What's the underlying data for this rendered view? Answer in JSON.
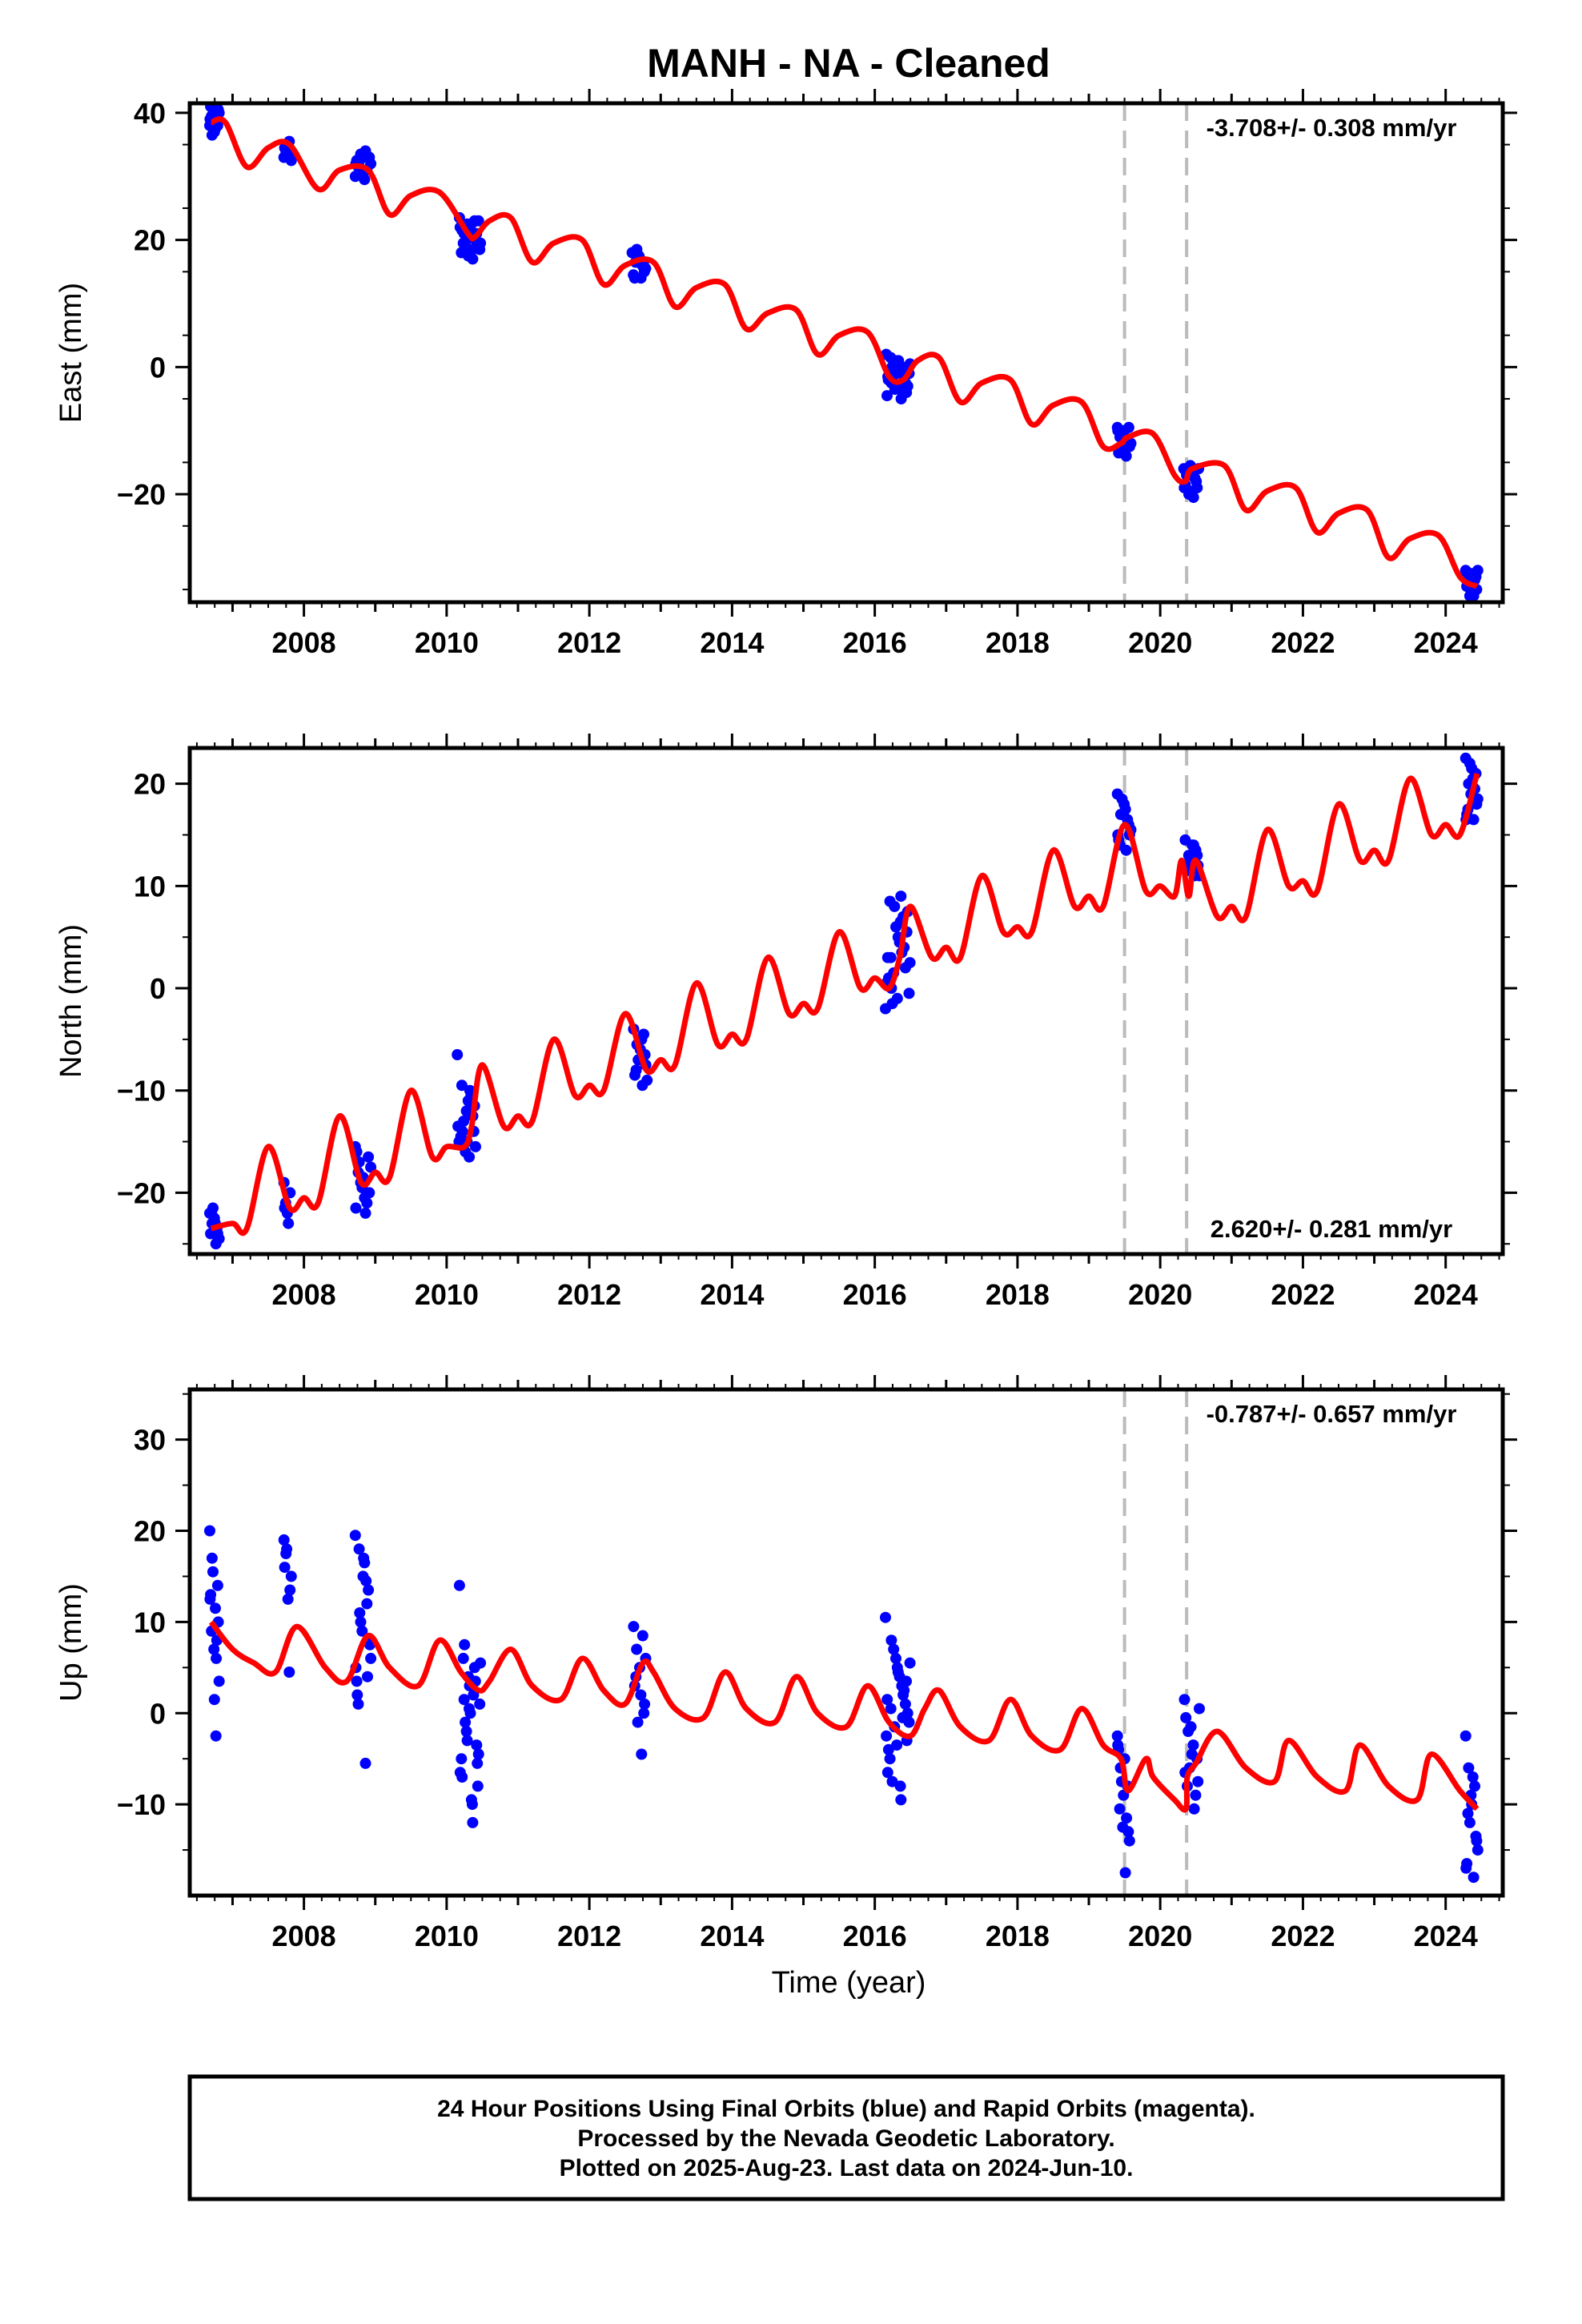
{
  "title": "MANH  - NA - Cleaned",
  "xlabel": "Time (year)",
  "footer": [
    "24 Hour Positions Using Final Orbits (blue) and Rapid Orbits (magenta).",
    "Processed by the Nevada Geodetic Laboratory.",
    "Plotted on 2025-Aug-23. Last data on 2024-Jun-10."
  ],
  "colors": {
    "data": "#0000ff",
    "model": "#ff0000",
    "event": "#bbbbbb",
    "frame": "#000000"
  },
  "events": [
    2019.5,
    2020.37
  ],
  "xlim": [
    2006.4,
    2024.8
  ],
  "x_ticks": [
    "2008",
    "2010",
    "2012",
    "2014",
    "2016",
    "2018",
    "2020",
    "2022",
    "2024"
  ],
  "chart_data": [
    {
      "type": "scatter",
      "ylabel": "East (mm)",
      "rate": "-3.708+/- 0.308 mm/yr",
      "rate_pos": "top-right",
      "ylim": [
        -37,
        41.5
      ],
      "y_ticks": [
        "40",
        "20",
        "0",
        "−20"
      ],
      "model": {
        "name": "model",
        "x": [
          2006.7,
          2006.9,
          2007.2,
          2007.5,
          2007.8,
          2008.2,
          2008.5,
          2008.9,
          2009.2,
          2009.5,
          2009.9,
          2010.3,
          2010.4,
          2010.6,
          2010.9,
          2011.2,
          2011.5,
          2011.9,
          2012.2,
          2012.5,
          2012.9,
          2013.2,
          2013.5,
          2013.9,
          2014.2,
          2014.5,
          2014.9,
          2015.2,
          2015.5,
          2015.9,
          2016.2,
          2016.4,
          2016.6,
          2016.9,
          2017.2,
          2017.5,
          2017.9,
          2018.2,
          2018.5,
          2018.9,
          2019.2,
          2019.45,
          2019.55,
          2019.9,
          2020.2,
          2020.35,
          2020.45,
          2020.9,
          2021.2,
          2021.5,
          2021.9,
          2022.2,
          2022.5,
          2022.9,
          2023.2,
          2023.5,
          2023.9,
          2024.2,
          2024.44
        ],
        "y": [
          38.5,
          38.5,
          31.5,
          34.5,
          35.0,
          28.0,
          31.0,
          31.0,
          24.0,
          27.0,
          27.5,
          21.0,
          20.5,
          23.0,
          23.5,
          16.5,
          19.5,
          20.0,
          13.0,
          16.0,
          16.5,
          9.5,
          12.5,
          13.0,
          6.0,
          8.5,
          9.0,
          2.0,
          5.0,
          5.5,
          -1.5,
          -2.0,
          1.0,
          1.5,
          -5.5,
          -2.5,
          -2.0,
          -9.0,
          -6.0,
          -5.5,
          -12.5,
          -12.0,
          -11.0,
          -10.5,
          -17.0,
          -18.0,
          -16.0,
          -15.5,
          -22.5,
          -19.5,
          -19.0,
          -26.0,
          -23.0,
          -22.5,
          -30.0,
          -27.0,
          -26.5,
          -33.0,
          -34.5
        ]
      },
      "observations": [
        {
          "t0": 2006.68,
          "t1": 2006.82,
          "y": [
            38.0,
            42.0,
            36.5,
            40.5,
            37.0,
            41.0,
            39.0,
            38.5,
            40.0,
            37.5,
            39.5,
            38.0,
            41.5,
            39.0
          ]
        },
        {
          "t0": 2007.72,
          "t1": 2007.84,
          "y": [
            33.0,
            35.5,
            34.0,
            32.5,
            35.0,
            34.5,
            33.5,
            34.0
          ]
        },
        {
          "t0": 2008.72,
          "t1": 2008.95,
          "y": [
            30.0,
            34.0,
            31.5,
            33.0,
            30.5,
            32.5,
            31.0,
            33.5,
            32.0,
            29.5,
            31.5,
            33.0,
            30.5,
            32.0,
            31.0,
            32.5
          ]
        },
        {
          "t0": 2010.18,
          "t1": 2010.48,
          "y": [
            23.5,
            17.0,
            22.0,
            19.0,
            21.5,
            18.0,
            23.0,
            20.0,
            18.5,
            22.5,
            19.5,
            21.0,
            17.5,
            22.0,
            20.5,
            19.0,
            23.0,
            18.0,
            21.5,
            20.0,
            22.5,
            19.5,
            18.5,
            21.0
          ]
        },
        {
          "t0": 2012.6,
          "t1": 2012.8,
          "y": [
            18.0,
            14.0,
            16.5,
            15.0,
            17.5,
            14.5,
            16.0,
            18.5,
            15.5,
            17.0,
            14.0,
            16.5
          ]
        },
        {
          "t0": 2016.16,
          "t1": 2016.5,
          "y": [
            2.0,
            -5.0,
            0.0,
            -3.0,
            1.0,
            -2.0,
            -4.0,
            0.5,
            -1.0,
            -3.5,
            1.5,
            -2.5,
            -0.5,
            -4.5,
            0.0,
            -1.5,
            -3.0,
            1.0,
            -2.0,
            -0.5,
            -3.5,
            0.5,
            -1.0,
            -2.5,
            -4.0,
            0.0,
            -1.5,
            -3.0
          ]
        },
        {
          "t0": 2019.4,
          "t1": 2019.6,
          "y": [
            -9.5,
            -14.0,
            -11.0,
            -12.5,
            -10.0,
            -13.5,
            -11.5,
            -10.5,
            -12.0,
            -13.0,
            -11.0,
            -9.5,
            -12.5,
            -10.0
          ]
        },
        {
          "t0": 2020.33,
          "t1": 2020.55,
          "y": [
            -16.0,
            -20.5,
            -17.0,
            -19.0,
            -16.5,
            -18.5,
            -17.5,
            -20.0,
            -16.0,
            -19.5,
            -17.0,
            -18.0,
            -15.5,
            -19.0
          ]
        },
        {
          "t0": 2024.28,
          "t1": 2024.46,
          "y": [
            -32.0,
            -36.0,
            -33.0,
            -35.0,
            -32.5,
            -34.5,
            -33.5,
            -36.0,
            -32.0,
            -35.5,
            -34.0,
            -33.0,
            -35.0,
            -32.5
          ]
        }
      ]
    },
    {
      "type": "scatter",
      "ylabel": "North (mm)",
      "rate": "2.620+/- 0.281 mm/yr",
      "rate_pos": "bottom-right",
      "ylim": [
        -26,
        23.5
      ],
      "y_ticks": [
        "20",
        "10",
        "0",
        "−10",
        "−20"
      ],
      "model": {
        "name": "model",
        "x": [
          2006.7,
          2007.0,
          2007.2,
          2007.5,
          2007.8,
          2008.0,
          2008.2,
          2008.5,
          2008.8,
          2009.0,
          2009.2,
          2009.5,
          2009.8,
          2010.0,
          2010.25,
          2010.35,
          2010.5,
          2010.8,
          2011.0,
          2011.2,
          2011.5,
          2011.8,
          2012.0,
          2012.2,
          2012.5,
          2012.8,
          2013.0,
          2013.2,
          2013.5,
          2013.8,
          2014.0,
          2014.2,
          2014.5,
          2014.8,
          2015.0,
          2015.2,
          2015.5,
          2015.8,
          2016.0,
          2016.2,
          2016.35,
          2016.5,
          2016.8,
          2017.0,
          2017.2,
          2017.5,
          2017.8,
          2018.0,
          2018.2,
          2018.5,
          2018.8,
          2019.0,
          2019.2,
          2019.5,
          2019.8,
          2020.0,
          2020.2,
          2020.3,
          2020.4,
          2020.5,
          2020.8,
          2021.0,
          2021.2,
          2021.5,
          2021.8,
          2022.0,
          2022.2,
          2022.5,
          2022.8,
          2023.0,
          2023.2,
          2023.5,
          2023.8,
          2024.0,
          2024.2,
          2024.44
        ],
        "y": [
          -23.5,
          -23.0,
          -23.5,
          -15.5,
          -21.5,
          -20.5,
          -21.0,
          -12.5,
          -19.0,
          -18.0,
          -18.5,
          -10.0,
          -16.5,
          -15.5,
          -15.5,
          -13.5,
          -7.5,
          -13.5,
          -12.5,
          -13.0,
          -5.0,
          -10.5,
          -9.5,
          -10.0,
          -2.5,
          -8.0,
          -7.0,
          -7.5,
          0.5,
          -5.5,
          -4.5,
          -5.0,
          3.0,
          -2.5,
          -1.5,
          -2.0,
          5.5,
          0.0,
          1.0,
          0.0,
          3.0,
          8.0,
          3.0,
          4.0,
          3.0,
          11.0,
          5.5,
          6.0,
          5.5,
          13.5,
          8.0,
          9.0,
          8.0,
          16.0,
          9.5,
          10.0,
          9.0,
          12.5,
          9.0,
          12.5,
          7.0,
          8.0,
          7.0,
          15.5,
          10.0,
          10.5,
          9.5,
          18.0,
          12.5,
          13.5,
          12.5,
          20.5,
          15.0,
          16.0,
          15.0,
          21.0
        ]
      },
      "observations": [
        {
          "t0": 2006.68,
          "t1": 2006.82,
          "y": [
            -22.0,
            -25.0,
            -23.0,
            -24.5,
            -22.5,
            -24.0,
            -23.5,
            -21.5,
            -24.5,
            -23.0,
            -22.0,
            -24.0
          ]
        },
        {
          "t0": 2007.72,
          "t1": 2007.82,
          "y": [
            -19.0,
            -23.0,
            -21.0,
            -20.0,
            -22.0,
            -21.5
          ]
        },
        {
          "t0": 2008.72,
          "t1": 2008.95,
          "y": [
            -15.5,
            -22.0,
            -17.0,
            -20.0,
            -18.5,
            -16.0,
            -21.0,
            -19.0,
            -17.5,
            -20.5,
            -18.0,
            -16.5,
            -19.5,
            -21.5
          ]
        },
        {
          "t0": 2010.15,
          "t1": 2010.42,
          "y": [
            -6.5,
            -16.5,
            -9.5,
            -14.0,
            -12.0,
            -15.0,
            -10.5,
            -13.0,
            -15.5,
            -11.0,
            -14.5,
            -12.5,
            -16.0,
            -13.5,
            -10.0,
            -14.0,
            -11.5,
            -15.0
          ]
        },
        {
          "t0": 2012.62,
          "t1": 2012.82,
          "y": [
            -4.0,
            -9.5,
            -5.5,
            -7.5,
            -6.0,
            -8.5,
            -4.5,
            -7.0,
            -9.0,
            -5.0,
            -8.0,
            -6.5
          ]
        },
        {
          "t0": 2016.15,
          "t1": 2016.5,
          "y": [
            -2.0,
            9.0,
            0.0,
            5.5,
            -1.0,
            3.0,
            7.0,
            1.5,
            -0.5,
            4.5,
            8.5,
            2.0,
            6.0,
            0.5,
            3.5,
            -1.5,
            7.5,
            5.0,
            1.0,
            4.0,
            8.0,
            2.5,
            6.5,
            3.0
          ]
        },
        {
          "t0": 2019.4,
          "t1": 2019.6,
          "y": [
            19.0,
            13.5,
            17.0,
            15.0,
            18.0,
            14.5,
            16.5,
            18.5,
            15.5,
            17.5,
            14.0,
            16.0,
            17.0,
            15.0
          ]
        },
        {
          "t0": 2020.35,
          "t1": 2020.56,
          "y": [
            14.5,
            11.0,
            13.0,
            12.0,
            14.0,
            11.5,
            13.5,
            12.5,
            11.0,
            14.0,
            12.0,
            13.0
          ]
        },
        {
          "t0": 2024.28,
          "t1": 2024.46,
          "y": [
            22.5,
            16.5,
            20.0,
            18.0,
            21.5,
            17.0,
            19.5,
            22.0,
            18.5,
            20.5,
            17.5,
            21.0,
            19.0,
            16.5
          ]
        }
      ]
    },
    {
      "type": "scatter",
      "ylabel": "Up (mm)",
      "rate": "-0.787+/- 0.657 mm/yr",
      "rate_pos": "top-right",
      "ylim": [
        -20,
        35.5
      ],
      "y_ticks": [
        "30",
        "20",
        "10",
        "0",
        "−10"
      ],
      "model": {
        "name": "model",
        "x": [
          2006.7,
          2007.0,
          2007.3,
          2007.6,
          2007.9,
          2008.3,
          2008.6,
          2008.9,
          2009.2,
          2009.6,
          2009.9,
          2010.2,
          2010.45,
          2010.6,
          2010.9,
          2011.2,
          2011.6,
          2011.9,
          2012.2,
          2012.5,
          2012.75,
          2012.9,
          2013.2,
          2013.6,
          2013.9,
          2014.2,
          2014.6,
          2014.9,
          2015.2,
          2015.6,
          2015.9,
          2016.2,
          2016.5,
          2016.7,
          2016.9,
          2017.2,
          2017.6,
          2017.9,
          2018.2,
          2018.6,
          2018.9,
          2019.2,
          2019.45,
          2019.55,
          2019.8,
          2019.9,
          2020.2,
          2020.36,
          2020.38,
          2020.5,
          2020.8,
          2021.2,
          2021.6,
          2021.8,
          2022.2,
          2022.6,
          2022.8,
          2023.2,
          2023.6,
          2023.8,
          2024.2,
          2024.44
        ],
        "y": [
          10.0,
          7.0,
          5.5,
          4.5,
          9.5,
          5.0,
          3.5,
          8.5,
          5.0,
          3.0,
          8.0,
          4.5,
          2.5,
          3.5,
          7.0,
          3.0,
          1.5,
          6.0,
          2.5,
          1.0,
          5.5,
          4.5,
          0.5,
          -0.5,
          4.5,
          0.5,
          -1.0,
          4.0,
          0.0,
          -1.5,
          3.0,
          -1.0,
          -2.5,
          0.5,
          2.5,
          -1.5,
          -3.0,
          1.5,
          -2.5,
          -4.0,
          0.5,
          -3.5,
          -5.0,
          -8.5,
          -5.0,
          -7.0,
          -9.5,
          -10.5,
          -7.0,
          -5.5,
          -2.0,
          -6.0,
          -7.5,
          -3.0,
          -7.0,
          -8.5,
          -3.5,
          -8.0,
          -9.5,
          -4.5,
          -8.5,
          -10.5
        ]
      },
      "observations": [
        {
          "t0": 2006.68,
          "t1": 2006.82,
          "y": [
            20.0,
            -2.5,
            17.0,
            10.0,
            1.5,
            13.0,
            8.0,
            15.5,
            3.5,
            11.5,
            9.0,
            14.0,
            7.0,
            12.5,
            6.0
          ]
        },
        {
          "t0": 2007.72,
          "t1": 2007.84,
          "y": [
            19.0,
            4.5,
            17.5,
            15.0,
            12.5,
            16.0,
            13.5,
            18.0
          ]
        },
        {
          "t0": 2008.72,
          "t1": 2008.95,
          "y": [
            19.5,
            -5.5,
            18.0,
            8.0,
            15.0,
            3.5,
            12.0,
            10.0,
            6.0,
            16.5,
            1.0,
            13.5,
            9.0,
            5.0,
            14.5,
            11.0,
            7.5,
            17.0,
            2.0,
            4.0
          ]
        },
        {
          "t0": 2010.18,
          "t1": 2010.48,
          "y": [
            14.0,
            -12.0,
            7.5,
            -8.0,
            3.0,
            -5.0,
            5.0,
            -2.0,
            1.0,
            -9.5,
            6.0,
            -3.5,
            4.0,
            -6.5,
            2.0,
            -1.0,
            -4.5,
            0.0,
            -7.0,
            3.5,
            -3.0,
            5.5,
            -10.0,
            1.5,
            -5.5,
            0.5
          ]
        },
        {
          "t0": 2012.62,
          "t1": 2012.8,
          "y": [
            9.5,
            -4.5,
            7.0,
            1.0,
            5.0,
            3.0,
            8.5,
            -1.0,
            6.0,
            2.0,
            4.0,
            0.0
          ]
        },
        {
          "t0": 2016.15,
          "t1": 2016.5,
          "y": [
            10.5,
            -9.5,
            8.0,
            -3.0,
            5.0,
            -6.5,
            2.0,
            7.0,
            -1.0,
            4.0,
            -5.0,
            1.0,
            6.0,
            -2.5,
            3.0,
            -7.5,
            0.0,
            4.5,
            -4.0,
            2.5,
            -1.5,
            5.5,
            -8.0,
            0.5,
            3.5,
            -3.5,
            1.5,
            -0.5
          ]
        },
        {
          "t0": 2019.4,
          "t1": 2019.58,
          "y": [
            -2.5,
            -17.5,
            -6.0,
            -13.0,
            -9.0,
            -4.0,
            -11.5,
            -7.5,
            -14.0,
            -5.0,
            -10.5,
            -8.0,
            -12.5,
            -3.5
          ]
        },
        {
          "t0": 2020.34,
          "t1": 2020.56,
          "y": [
            1.5,
            -10.5,
            -2.0,
            -7.5,
            -4.5,
            -0.5,
            -9.0,
            -6.0,
            0.5,
            -3.5,
            -8.0,
            -5.0,
            -1.5,
            -6.5
          ]
        },
        {
          "t0": 2024.28,
          "t1": 2024.46,
          "y": [
            -2.5,
            -18.0,
            -6.0,
            -14.0,
            -10.0,
            -16.5,
            -8.0,
            -12.0,
            -15.0,
            -7.0,
            -11.0,
            -13.5,
            -9.0,
            -17.0
          ]
        }
      ]
    }
  ]
}
